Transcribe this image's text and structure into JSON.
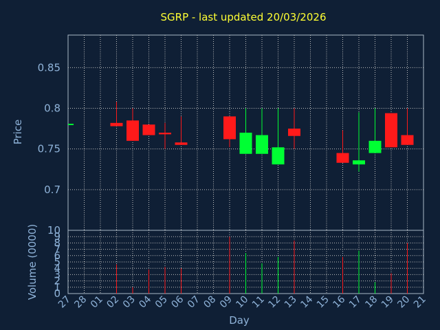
{
  "chart_data": {
    "type": "candlestick",
    "title": "SGRP - last updated 20/03/2026",
    "xlabel": "Day",
    "price_panel": {
      "ylabel": "Price",
      "ylim": [
        0.65,
        0.89
      ],
      "yticks": [
        "0.7",
        "0.75",
        "0.8",
        "0.85"
      ],
      "yticks_values": [
        0.7,
        0.75,
        0.8,
        0.85
      ]
    },
    "volume_panel": {
      "ylabel": "Volume (0000)",
      "ylim": [
        0,
        10
      ],
      "yticks": [
        "0",
        "1",
        "2",
        "3",
        "4",
        "5",
        "6",
        "7",
        "8",
        "9",
        "10"
      ]
    },
    "days": [
      "27",
      "28",
      "01",
      "02",
      "03",
      "04",
      "05",
      "06",
      "07",
      "08",
      "09",
      "10",
      "11",
      "12",
      "13",
      "14",
      "15",
      "16",
      "17",
      "18",
      "19",
      "20",
      "21"
    ],
    "colors": {
      "up": "#00ff33",
      "down": "#ff1a1a",
      "grid": "#c0c0c0"
    },
    "candles": [
      {
        "day": "27",
        "open": 0.781,
        "close": 0.781,
        "high": 0.781,
        "low": 0.781,
        "volume": 0
      },
      {
        "day": "02",
        "open": 0.782,
        "close": 0.778,
        "high": 0.808,
        "low": 0.778,
        "volume": 4.6
      },
      {
        "day": "03",
        "open": 0.785,
        "close": 0.76,
        "high": 0.8,
        "low": 0.76,
        "volume": 1.0
      },
      {
        "day": "04",
        "open": 0.78,
        "close": 0.767,
        "high": 0.78,
        "low": 0.767,
        "volume": 3.8
      },
      {
        "day": "05",
        "open": 0.77,
        "close": 0.768,
        "high": 0.782,
        "low": 0.75,
        "volume": 4.2
      },
      {
        "day": "06",
        "open": 0.758,
        "close": 0.755,
        "high": 0.79,
        "low": 0.755,
        "volume": 4.0
      },
      {
        "day": "09",
        "open": 0.79,
        "close": 0.762,
        "high": 0.79,
        "low": 0.752,
        "volume": 9.0
      },
      {
        "day": "10",
        "open": 0.744,
        "close": 0.77,
        "high": 0.8,
        "low": 0.744,
        "volume": 6.4
      },
      {
        "day": "11",
        "open": 0.744,
        "close": 0.767,
        "high": 0.8,
        "low": 0.744,
        "volume": 4.8
      },
      {
        "day": "12",
        "open": 0.731,
        "close": 0.752,
        "high": 0.8,
        "low": 0.731,
        "volume": 5.8
      },
      {
        "day": "13",
        "open": 0.775,
        "close": 0.766,
        "high": 0.8,
        "low": 0.75,
        "volume": 8.4
      },
      {
        "day": "16",
        "open": 0.745,
        "close": 0.733,
        "high": 0.773,
        "low": 0.733,
        "volume": 5.8
      },
      {
        "day": "17",
        "open": 0.731,
        "close": 0.736,
        "high": 0.795,
        "low": 0.722,
        "volume": 6.8
      },
      {
        "day": "18",
        "open": 0.745,
        "close": 0.76,
        "high": 0.8,
        "low": 0.745,
        "volume": 1.8
      },
      {
        "day": "19",
        "open": 0.794,
        "close": 0.752,
        "high": 0.794,
        "low": 0.752,
        "volume": 3.2
      },
      {
        "day": "20",
        "open": 0.767,
        "close": 0.755,
        "high": 0.8,
        "low": 0.755,
        "volume": 8.0
      }
    ]
  }
}
